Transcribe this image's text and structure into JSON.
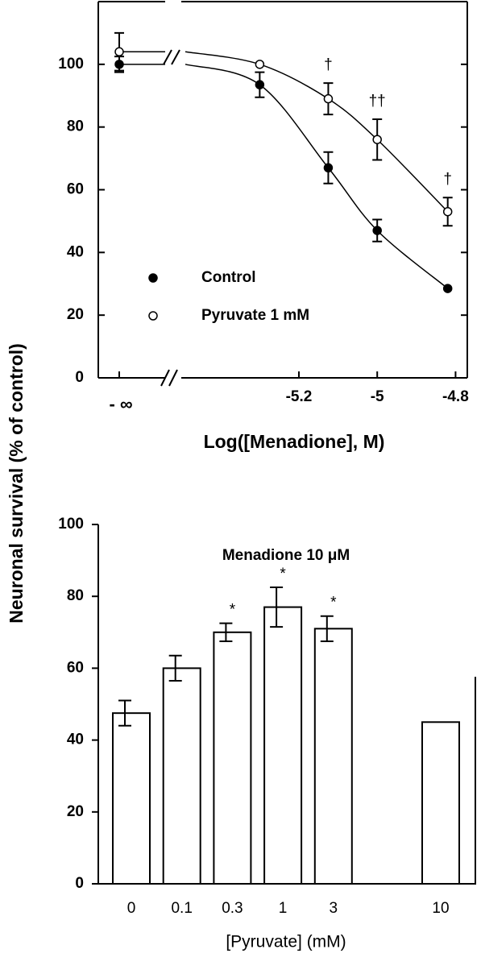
{
  "shared_y_label": "Neuronal survival (% of control)",
  "chart_data": [
    {
      "type": "line",
      "x_label": "Log([Menadione], M)",
      "x_control_label": "- ∞",
      "x": [
        -5.3,
        -5.125,
        -5,
        -4.82
      ],
      "xlim": [
        -5.49,
        -4.77
      ],
      "xticks": [
        -5.2,
        -5,
        -4.8
      ],
      "ylim": [
        0,
        120
      ],
      "yticks": [
        0,
        20,
        40,
        60,
        80,
        100
      ],
      "legend": "left-center",
      "series": [
        {
          "name": "Control",
          "marker": "filled",
          "color": "#000000",
          "control_value": 100,
          "control_error": 2.5,
          "values": [
            93.5,
            67,
            47,
            28.5
          ],
          "errors": [
            4,
            5,
            3.5,
            0
          ]
        },
        {
          "name": "Pyruvate 1 mM",
          "marker": "open",
          "color": "#000000",
          "control_value": 104,
          "control_error": 6,
          "values": [
            100,
            89,
            76,
            53
          ],
          "errors": [
            0,
            5,
            6.5,
            4.5
          ],
          "value_annotations": [
            null,
            "†",
            "††",
            "†"
          ]
        }
      ]
    },
    {
      "type": "bar",
      "title": "Menadione 10 μM",
      "x_label": "[Pyruvate] (mM)",
      "categories": [
        "0",
        "0.1",
        "0.3",
        "1",
        "3",
        "10"
      ],
      "values": [
        47.5,
        60,
        70,
        77,
        71,
        45
      ],
      "errors": [
        3.5,
        3.5,
        2.5,
        5.5,
        3.5,
        0
      ],
      "value_annotations": [
        null,
        null,
        "*",
        "*",
        "*",
        null
      ],
      "color": "#ffffff",
      "ylim": [
        0,
        100
      ],
      "yticks": [
        0,
        20,
        40,
        60,
        80,
        100
      ]
    }
  ]
}
